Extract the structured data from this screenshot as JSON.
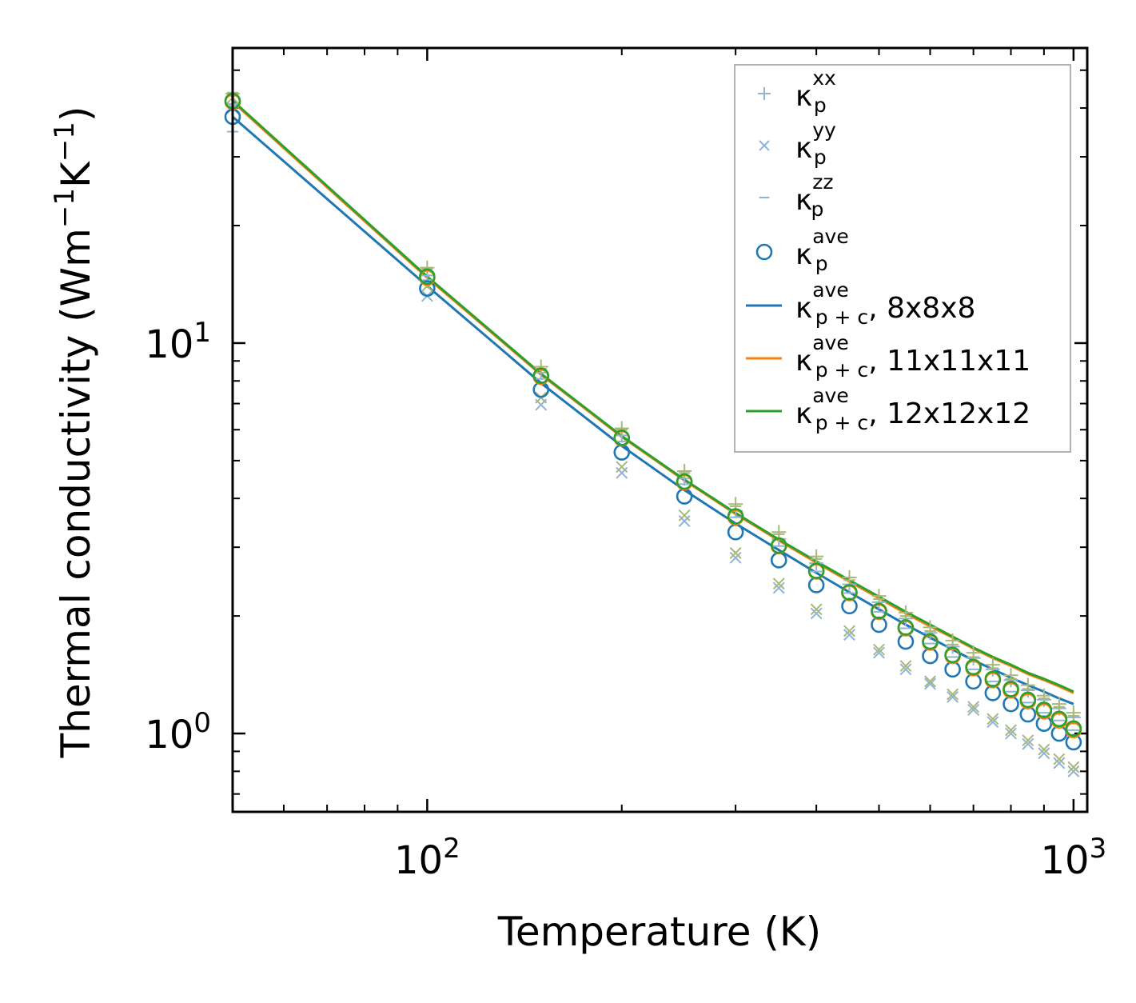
{
  "chart_data": {
    "type": "line",
    "xscale": "log",
    "yscale": "log",
    "xlabel": "Temperature (K)",
    "ylabel": "Thermal conductivity (Wm",
    "ylabel_parts": [
      "Thermal conductivity (Wm",
      "−1",
      "K",
      "−1",
      ")"
    ],
    "xlim": [
      50,
      1050
    ],
    "ylim": [
      0.63,
      57
    ],
    "x_ticks": [
      {
        "base": "10",
        "exp": "2",
        "value": 100
      },
      {
        "base": "10",
        "exp": "3",
        "value": 1000
      }
    ],
    "y_ticks": [
      {
        "base": "10",
        "exp": "0",
        "value": 1
      },
      {
        "base": "10",
        "exp": "1",
        "value": 10
      }
    ],
    "legend_position": "top-right",
    "legend": [
      {
        "name": "κ",
        "sup": "xx",
        "sub": "p",
        "tail": "",
        "kind": "plus",
        "color": "#8fb4d6"
      },
      {
        "name": "κ",
        "sup": "yy",
        "sub": "p",
        "tail": "",
        "kind": "cross",
        "color": "#8fb4d6"
      },
      {
        "name": "κ",
        "sup": "zz",
        "sub": "p",
        "tail": "",
        "kind": "dash",
        "color": "#8fb4d6"
      },
      {
        "name": "κ",
        "sup": "ave",
        "sub": "p",
        "tail": "",
        "kind": "circle",
        "color": "#1f77b4"
      },
      {
        "name": "κ",
        "sup": "ave",
        "sub": "p + c",
        "tail": ", 8x8x8",
        "kind": "line",
        "color": "#1f77b4"
      },
      {
        "name": "κ",
        "sup": "ave",
        "sub": "p + c",
        "tail": ", 11x11x11",
        "kind": "line",
        "color": "#ff7f0e"
      },
      {
        "name": "κ",
        "sup": "ave",
        "sub": "p + c",
        "tail": ", 12x12x12",
        "kind": "line",
        "color": "#2ca02c"
      }
    ],
    "x": [
      50,
      100,
      150,
      200,
      250,
      300,
      350,
      400,
      450,
      500,
      550,
      600,
      650,
      700,
      750,
      800,
      850,
      900,
      950,
      1000
    ],
    "lines": [
      {
        "name": "κ_p+c^ave, 8x8x8",
        "color": "#1f77b4",
        "values": [
          38.0,
          14.0,
          7.9,
          5.45,
          4.2,
          3.45,
          2.95,
          2.58,
          2.3,
          2.08,
          1.9,
          1.76,
          1.64,
          1.54,
          1.46,
          1.39,
          1.33,
          1.28,
          1.23,
          1.19
        ]
      },
      {
        "name": "κ_p+c^ave, 11x11x11",
        "color": "#ff7f0e",
        "values": [
          41.5,
          14.7,
          8.3,
          5.75,
          4.45,
          3.65,
          3.12,
          2.74,
          2.45,
          2.22,
          2.03,
          1.88,
          1.76,
          1.65,
          1.56,
          1.49,
          1.42,
          1.37,
          1.32,
          1.27
        ]
      },
      {
        "name": "κ_p+c^ave, 12x12x12",
        "color": "#2ca02c",
        "values": [
          41.8,
          14.8,
          8.35,
          5.78,
          4.47,
          3.67,
          3.14,
          2.76,
          2.47,
          2.24,
          2.05,
          1.9,
          1.77,
          1.66,
          1.57,
          1.5,
          1.43,
          1.38,
          1.33,
          1.28
        ]
      }
    ],
    "scatter": [
      {
        "name": "κ_p^ave (8x8x8)",
        "kind": "circle",
        "color": "#1f77b4",
        "values": [
          38.0,
          13.8,
          7.6,
          5.25,
          4.05,
          3.28,
          2.78,
          2.4,
          2.12,
          1.9,
          1.72,
          1.58,
          1.46,
          1.36,
          1.27,
          1.19,
          1.12,
          1.06,
          1.0,
          0.95
        ]
      },
      {
        "name": "κ_p^ave (11x11x11)",
        "kind": "circle",
        "color": "#ff7f0e",
        "values": [
          41.5,
          14.7,
          8.2,
          5.7,
          4.4,
          3.58,
          3.02,
          2.6,
          2.29,
          2.05,
          1.86,
          1.71,
          1.58,
          1.47,
          1.37,
          1.29,
          1.21,
          1.14,
          1.08,
          1.02
        ]
      },
      {
        "name": "κ_p^ave (12x12x12)",
        "kind": "circle",
        "color": "#2ca02c",
        "values": [
          41.7,
          14.8,
          8.25,
          5.72,
          4.42,
          3.6,
          3.03,
          2.61,
          2.3,
          2.06,
          1.87,
          1.72,
          1.59,
          1.48,
          1.38,
          1.3,
          1.22,
          1.15,
          1.09,
          1.03
        ]
      },
      {
        "name": "κ_p^xx (8x8x8)",
        "kind": "plus",
        "color": "#8fb4d6",
        "values": [
          41.0,
          14.9,
          8.4,
          5.8,
          4.5,
          3.72,
          3.15,
          2.73,
          2.41,
          2.17,
          1.97,
          1.81,
          1.67,
          1.56,
          1.46,
          1.37,
          1.29,
          1.22,
          1.16,
          1.1
        ]
      },
      {
        "name": "κ_p^xx (12x12x12)",
        "kind": "plus",
        "color": "#a8b87a",
        "values": [
          43.5,
          15.6,
          8.7,
          6.05,
          4.7,
          3.87,
          3.28,
          2.84,
          2.51,
          2.25,
          2.04,
          1.87,
          1.73,
          1.61,
          1.5,
          1.41,
          1.33,
          1.25,
          1.19,
          1.13
        ]
      },
      {
        "name": "κ_p^yy (8x8x8)",
        "kind": "cross",
        "color": "#8fb4d6",
        "values": [
          40.0,
          13.2,
          6.95,
          4.65,
          3.5,
          2.82,
          2.36,
          2.03,
          1.79,
          1.61,
          1.46,
          1.34,
          1.24,
          1.15,
          1.07,
          1.0,
          0.94,
          0.89,
          0.84,
          0.8
        ]
      },
      {
        "name": "κ_p^yy (12x12x12)",
        "kind": "cross",
        "color": "#a8b87a",
        "values": [
          42.5,
          14.0,
          7.25,
          4.82,
          3.62,
          2.9,
          2.42,
          2.08,
          1.83,
          1.64,
          1.49,
          1.36,
          1.26,
          1.17,
          1.09,
          1.02,
          0.96,
          0.91,
          0.86,
          0.82
        ]
      },
      {
        "name": "κ_p^zz (8x8x8)",
        "kind": "dash",
        "color": "#8fb4d6",
        "values": [
          34.8,
          14.5,
          8.1,
          5.6,
          4.35,
          3.58,
          3.02,
          2.6,
          2.29,
          2.05,
          1.86,
          1.7,
          1.57,
          1.46,
          1.36,
          1.28,
          1.2,
          1.13,
          1.08,
          1.02
        ]
      },
      {
        "name": "κ_p^zz (12x12x12)",
        "kind": "dash",
        "color": "#a8b87a",
        "values": [
          43.8,
          15.5,
          8.6,
          6.0,
          4.65,
          3.82,
          3.24,
          2.8,
          2.47,
          2.21,
          2.0,
          1.83,
          1.69,
          1.57,
          1.47,
          1.38,
          1.3,
          1.23,
          1.17,
          1.11
        ]
      }
    ]
  }
}
